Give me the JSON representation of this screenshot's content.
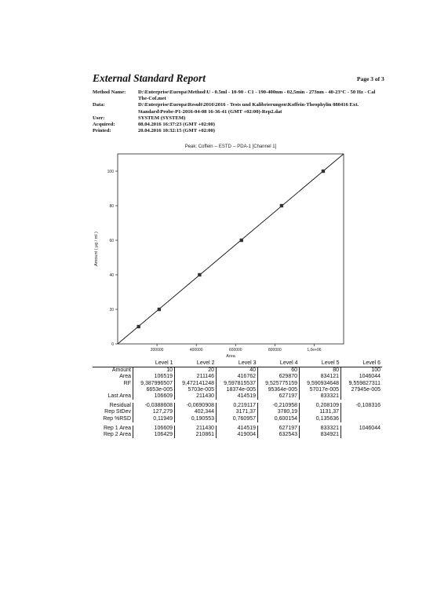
{
  "header": {
    "title": "External Standard Report",
    "page": "Page 3 of 3",
    "fields": [
      {
        "label": "Method Name:",
        "value": "D:\\Enterprise\\Europa\\Method\\U - 0.5ml - 10-90 - C1 - 190-400nm - 02,5min - 273nm - 40-23°C - 50 Hz - Cal The-Cof.met"
      },
      {
        "label": "Data:",
        "value": "D:\\Enterprise\\Europa\\Result\\2016\\2016 - Tests und Kalibrierungen\\Koffein-Theophylin 080416 Ext. Standard\\Probe-P1-2016-04-08 16-36-41 (GMT +02:00)-Rep2.dat"
      },
      {
        "label": "User:",
        "value": "SYSTEM (SYSTEM)"
      },
      {
        "label": "Acquired:",
        "value": "08.04.2016 16:37:23 (GMT +02:00)"
      },
      {
        "label": "Printed:",
        "value": "20.04.2016 10:32:15 (GMT +02:00)"
      }
    ]
  },
  "chart_data": {
    "type": "scatter",
    "title": "Peak: Coffein -- ESTD -- PDA-1 [Channel 1]",
    "xlabel": "Area",
    "ylabel": "Amount ( µg / ml )",
    "xlim": [
      0,
      1150000
    ],
    "ylim": [
      0,
      110
    ],
    "x_ticks": [
      "200000",
      "400000",
      "600000",
      "800000",
      "1,0e+06"
    ],
    "x_tick_values": [
      200000,
      400000,
      600000,
      800000,
      1000000
    ],
    "y_ticks": [
      "0",
      "20",
      "40",
      "60",
      "80",
      "100"
    ],
    "y_tick_values": [
      0,
      20,
      40,
      60,
      80,
      100
    ],
    "points": [
      {
        "x": 106519,
        "y": 10
      },
      {
        "x": 211146,
        "y": 20
      },
      {
        "x": 416762,
        "y": 40
      },
      {
        "x": 629870,
        "y": 60
      },
      {
        "x": 834121,
        "y": 80
      },
      {
        "x": 1046044,
        "y": 100
      }
    ],
    "fit_line": [
      [
        0,
        0
      ],
      [
        1150000,
        110
      ]
    ],
    "grid": false,
    "colors": {
      "axis": "#222222",
      "marker": "#333333",
      "line": "#111111"
    }
  },
  "table": {
    "columns": [
      "Level 1",
      "Level 2",
      "Level 3",
      "Level 4",
      "Level 5",
      "Level 6"
    ],
    "rows": [
      {
        "label": "Amount",
        "cells": [
          "10",
          "20",
          "40",
          "60",
          "80",
          "100"
        ]
      },
      {
        "label": "Area",
        "cells": [
          "106519",
          "211146",
          "416762",
          "629870",
          "834121",
          "1046044"
        ]
      },
      {
        "label": "RF",
        "cells": [
          "9,387996507",
          "9,472141248",
          "9,597815537",
          "9,525775159",
          "9,590934648",
          "9,559827311"
        ]
      },
      {
        "label": "",
        "cells": [
          "6653e-005",
          "5703e-005",
          "18374e-005",
          "95364e-005",
          "57017e-005",
          "27945e-005"
        ]
      },
      {
        "label": "Last Area",
        "cells": [
          "106609",
          "211430",
          "414519",
          "627197",
          "833321",
          ""
        ]
      },
      {
        "label": "Residual",
        "cells": [
          "-0,0388608",
          "-0,0690908",
          "0,219117",
          "-0,210958",
          "0,208109",
          "-0,108316"
        ]
      },
      {
        "label": "Rep StDev",
        "cells": [
          "127,279",
          "402,344",
          "3171,37",
          "3780,19",
          "1131,37",
          ""
        ]
      },
      {
        "label": "Rep %RSD",
        "cells": [
          "0,11949",
          "0,190553",
          "0,760957",
          "0,600154",
          "0,135636",
          ""
        ]
      },
      {
        "label": "Rep 1 Area",
        "cells": [
          "106609",
          "211430",
          "414519",
          "627197",
          "833321",
          "1046044"
        ]
      },
      {
        "label": "Rep 2 Area",
        "cells": [
          "106429",
          "210861",
          "419004",
          "632543",
          "834921",
          ""
        ]
      }
    ]
  }
}
